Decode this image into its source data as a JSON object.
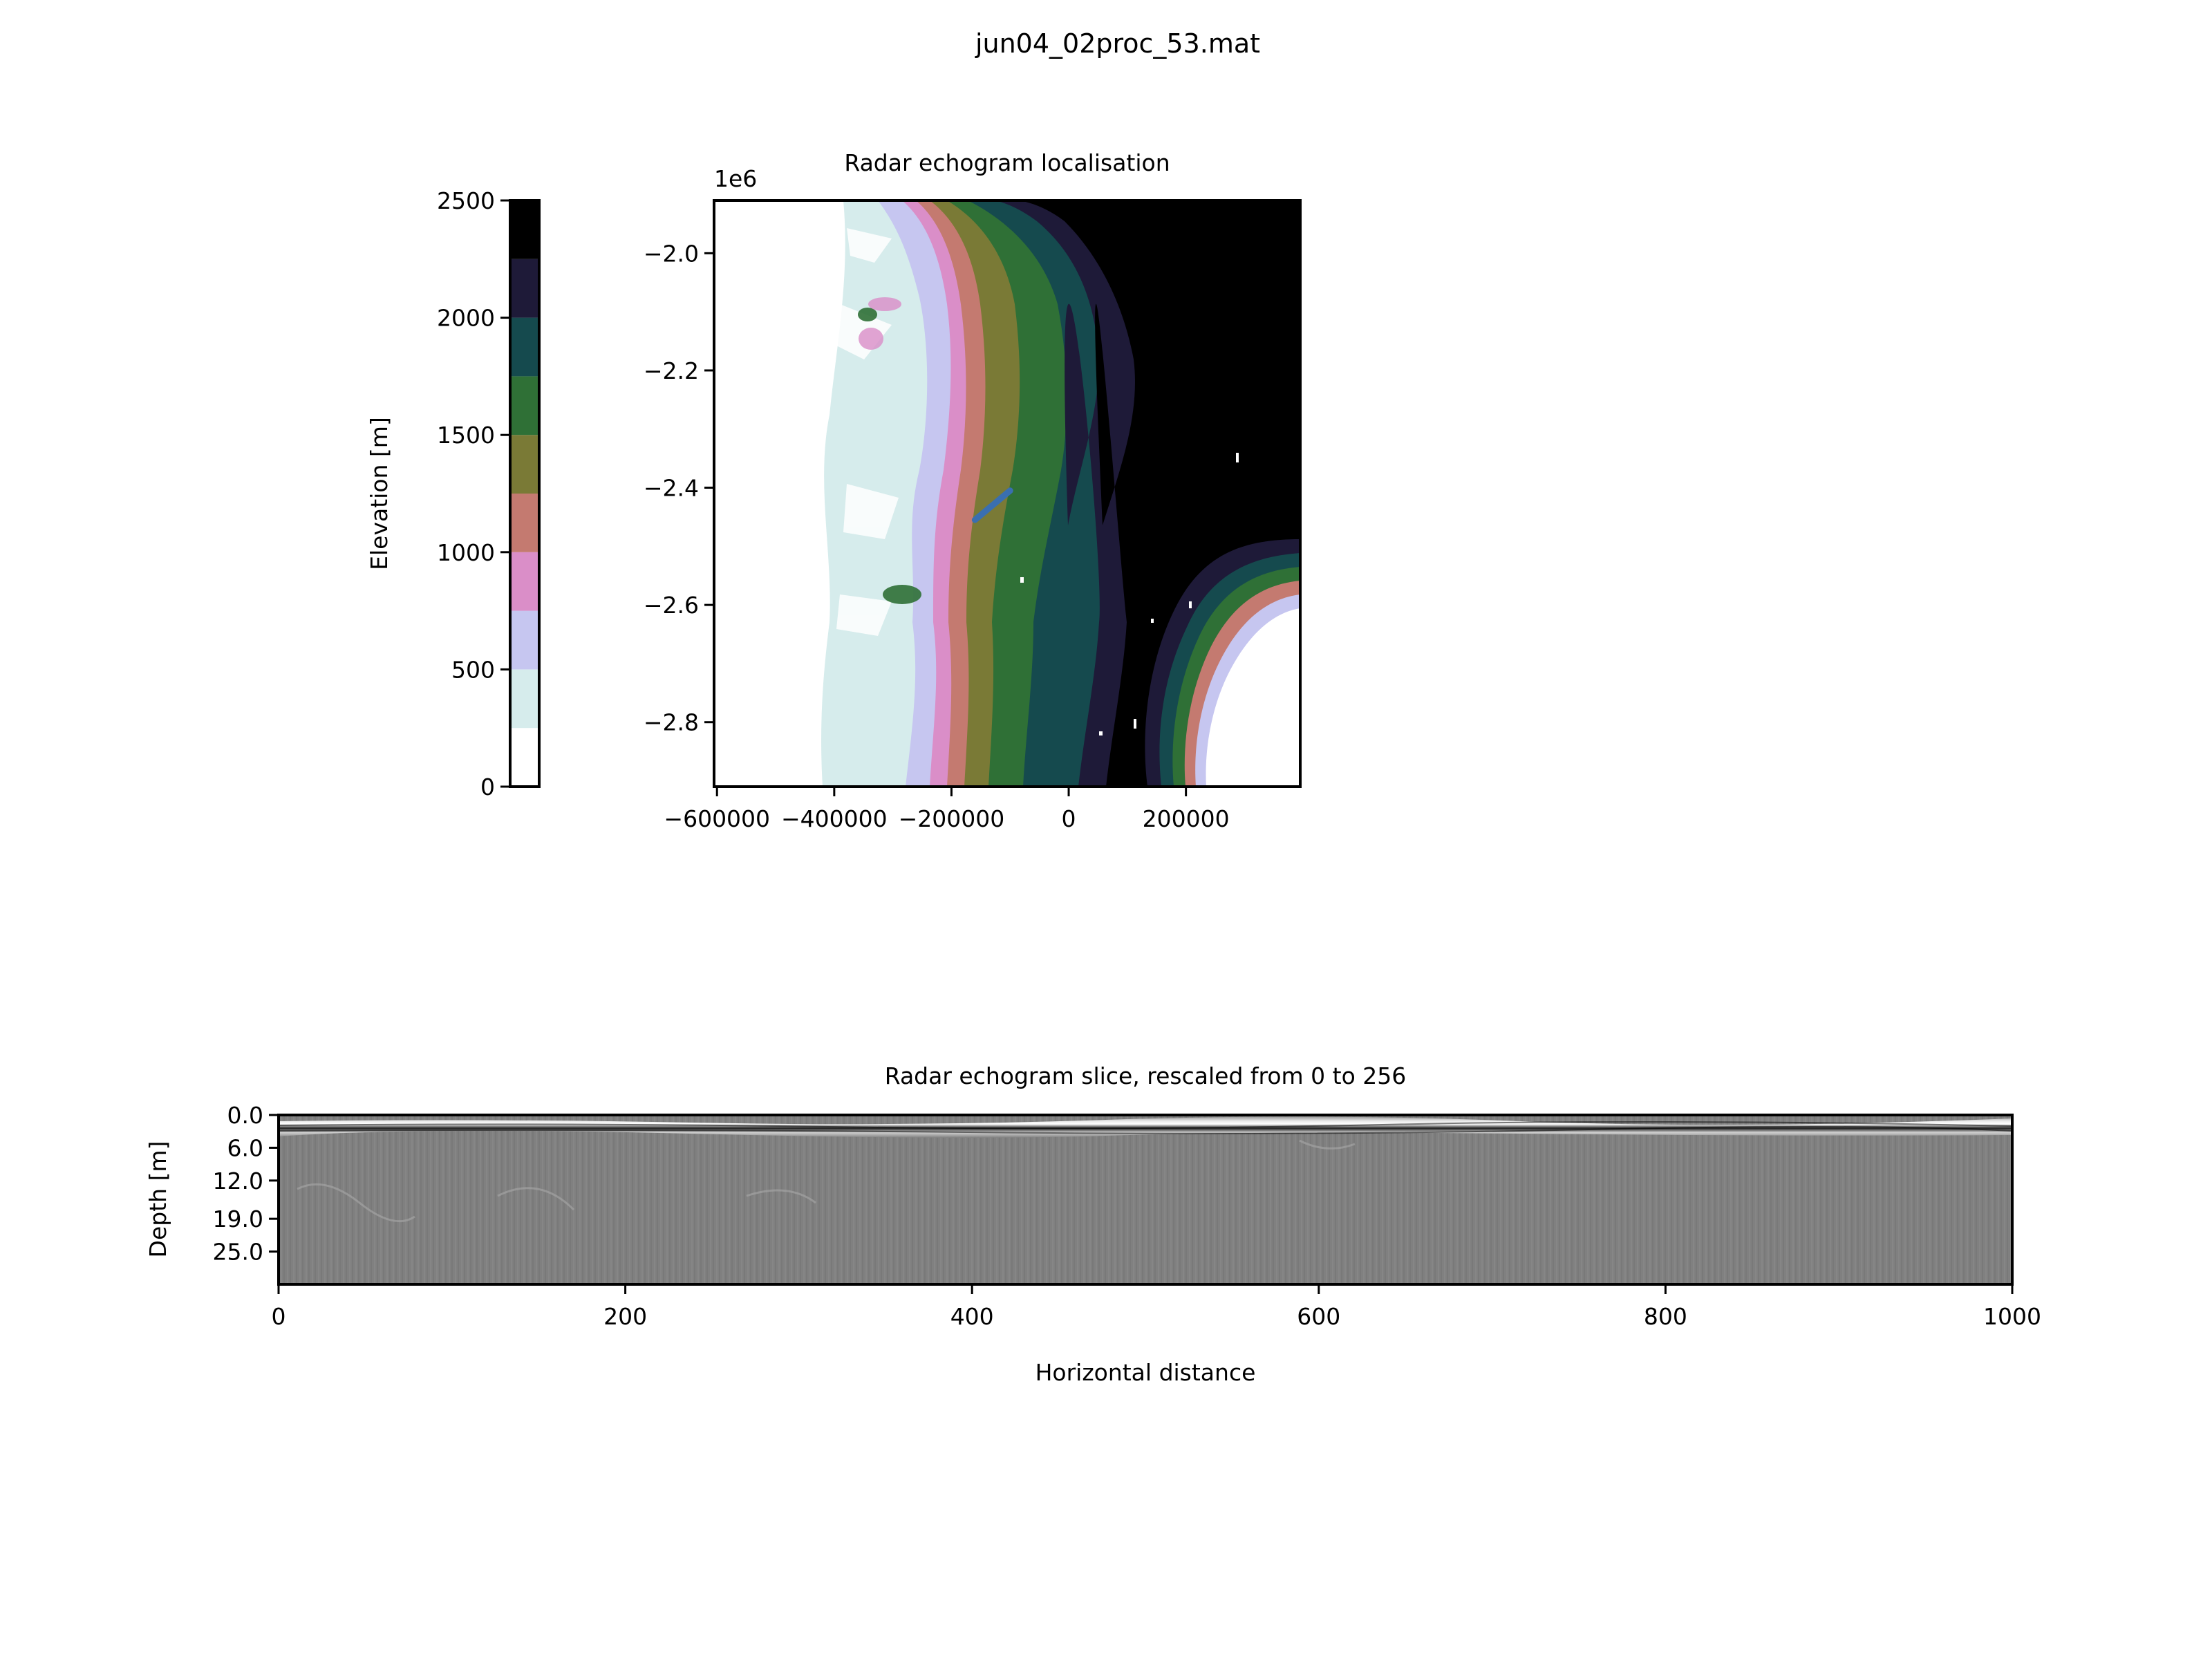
{
  "figure": {
    "suptitle": "jun04_02proc_53.mat"
  },
  "chart_data": [
    {
      "type": "colorbar",
      "label": "Elevation [m]",
      "range": [
        0,
        2500
      ],
      "ticks": [
        0,
        500,
        1000,
        1500,
        2000,
        2500
      ],
      "tick_labels": [
        "0",
        "500",
        "1000",
        "1500",
        "2000",
        "2500"
      ],
      "levels": [
        {
          "from": 0,
          "to": 250,
          "color": "#ffffff"
        },
        {
          "from": 250,
          "to": 500,
          "color": "#d6ecec"
        },
        {
          "from": 500,
          "to": 750,
          "color": "#c6c6f0"
        },
        {
          "from": 750,
          "to": 1000,
          "color": "#da8ec8"
        },
        {
          "from": 1000,
          "to": 1250,
          "color": "#c47a70"
        },
        {
          "from": 1250,
          "to": 1500,
          "color": "#7a7a36"
        },
        {
          "from": 1500,
          "to": 1750,
          "color": "#2f7036"
        },
        {
          "from": 1750,
          "to": 2000,
          "color": "#154a4e"
        },
        {
          "from": 2000,
          "to": 2250,
          "color": "#1e1a38"
        },
        {
          "from": 2250,
          "to": 2500,
          "color": "#000000"
        }
      ]
    },
    {
      "type": "heatmap",
      "title": "Radar echogram localisation",
      "x_ticks": [
        -600000,
        -400000,
        -200000,
        0,
        200000
      ],
      "x_tick_labels": [
        "−600000",
        "−400000",
        "−200000",
        "0",
        "200000"
      ],
      "xlim": [
        -605000,
        395000
      ],
      "y_ticks": [
        -2.0,
        -2.2,
        -2.4,
        -2.6,
        -2.8
      ],
      "y_tick_labels": [
        "−2.0",
        "−2.2",
        "−2.4",
        "−2.6",
        "−2.8"
      ],
      "ylim": [
        -2.91,
        -1.91
      ],
      "y_offset_label": "1e6",
      "track": {
        "x": [
          -160000,
          -100000
        ],
        "y": [
          -2.455,
          -2.405
        ],
        "color": "#3a6fb0"
      }
    },
    {
      "type": "heatmap",
      "title": "Radar echogram slice, rescaled from 0 to 256",
      "xlabel": "Horizontal distance",
      "ylabel": "Depth [m]",
      "xlim": [
        0,
        1000
      ],
      "x_ticks": [
        0,
        200,
        400,
        600,
        800,
        1000
      ],
      "x_tick_labels": [
        "0",
        "200",
        "400",
        "600",
        "800",
        "1000"
      ],
      "y_ticks": [
        0,
        6,
        12,
        19,
        25
      ],
      "y_tick_labels": [
        "0.0",
        "6.0",
        "12.0",
        "19.0",
        "25.0"
      ],
      "ylim": [
        31,
        0
      ],
      "colormap": "gray"
    }
  ]
}
